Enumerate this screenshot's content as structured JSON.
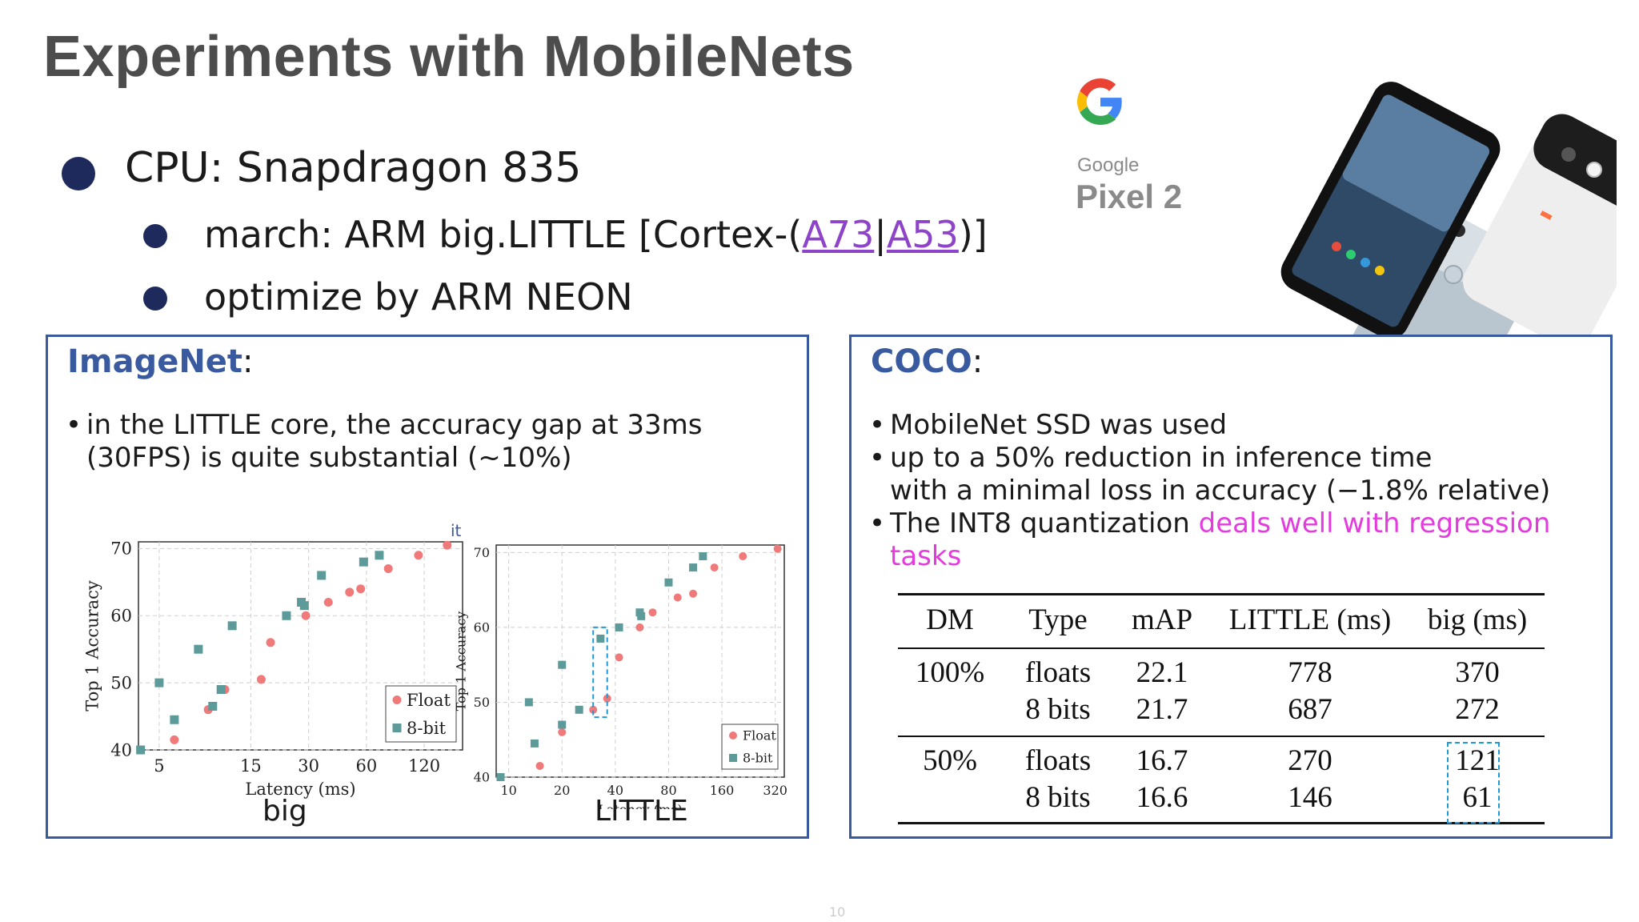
{
  "title": "Experiments with MobileNets",
  "bullets": {
    "cpu": "CPU: Snapdragon 835",
    "march_prefix": "march: ARM big.LITTLE [Cortex-(",
    "march_link1": "A73",
    "march_sep": "|",
    "march_link2": "A53",
    "march_suffix": ")]",
    "neon": "optimize by ARM NEON"
  },
  "logo": {
    "brand": "Google",
    "product": "Pixel 2"
  },
  "imagenet": {
    "heading": "ImageNet",
    "colon": ":",
    "bullet": "in the LITTLE core, the accuracy gap at 33ms (30FPS) is quite substantial (~10%)",
    "stray_text": "it",
    "caption_big": "big",
    "caption_little": "LITTLE"
  },
  "chart_data": [
    {
      "type": "scatter",
      "xlabel": "Latency (ms)",
      "ylabel": "Top 1 Accuracy",
      "x_scale": "log",
      "x_ticks": [
        "5",
        "15",
        "30",
        "60",
        "120"
      ],
      "y_ticks": [
        "40",
        "50",
        "60",
        "70"
      ],
      "ylim": [
        40,
        71
      ],
      "legend": "bottom-right",
      "series": [
        {
          "name": "Float",
          "color": "#f07a7a",
          "marker": "circle",
          "points": [
            [
              6,
              41.5
            ],
            [
              9,
              46
            ],
            [
              11,
              49
            ],
            [
              17,
              50.5
            ],
            [
              19,
              56
            ],
            [
              29,
              60
            ],
            [
              38,
              62
            ],
            [
              49,
              63.5
            ],
            [
              56,
              64
            ],
            [
              78,
              67
            ],
            [
              112,
              69
            ],
            [
              158,
              70.5
            ]
          ]
        },
        {
          "name": "8-bit",
          "color": "#5d9a9a",
          "marker": "square",
          "points": [
            [
              4,
              40
            ],
            [
              5,
              50
            ],
            [
              6,
              44.5
            ],
            [
              8,
              55
            ],
            [
              9.5,
              46.5
            ],
            [
              10.5,
              49
            ],
            [
              12,
              58.5
            ],
            [
              23,
              60
            ],
            [
              27.5,
              62
            ],
            [
              28.5,
              61.5
            ],
            [
              35,
              66
            ],
            [
              58,
              68
            ],
            [
              70,
              69
            ]
          ]
        }
      ]
    },
    {
      "type": "scatter",
      "xlabel": "Latency (ms)",
      "ylabel": "Top 1 Accuracy",
      "x_scale": "log",
      "x_ticks": [
        "10",
        "20",
        "40",
        "80",
        "160",
        "320"
      ],
      "y_ticks": [
        "40",
        "50",
        "60",
        "70"
      ],
      "ylim": [
        40,
        71
      ],
      "legend": "bottom-right",
      "series": [
        {
          "name": "Float",
          "color": "#f07a7a",
          "marker": "circle",
          "points": [
            [
              15,
              41.5
            ],
            [
              20,
              46
            ],
            [
              30,
              49
            ],
            [
              36,
              50.5
            ],
            [
              42,
              56
            ],
            [
              55,
              60
            ],
            [
              65,
              62
            ],
            [
              90,
              64
            ],
            [
              110,
              64.5
            ],
            [
              145,
              68
            ],
            [
              210,
              69.5
            ],
            [
              330,
              70.5
            ]
          ]
        },
        {
          "name": "8-bit",
          "color": "#5d9a9a",
          "marker": "square",
          "points": [
            [
              9,
              40
            ],
            [
              13,
              50
            ],
            [
              14,
              44.5
            ],
            [
              20,
              47
            ],
            [
              20,
              55
            ],
            [
              25,
              49
            ],
            [
              33,
              58.5
            ],
            [
              42,
              60
            ],
            [
              55,
              62
            ],
            [
              56,
              61.5
            ],
            [
              80,
              66
            ],
            [
              110,
              68
            ],
            [
              125,
              69.5
            ]
          ]
        }
      ]
    }
  ],
  "coco": {
    "heading": "COCO",
    "colon": ":",
    "b1": "MobileNet SSD was used",
    "b2_line1": "up to a 50% reduction in inference time",
    "b2_line2": "with a minimal loss in accuracy (−1.8% relative)",
    "b3_prefix": "The INT8 quantization ",
    "b3_highlight1": "deals well with regression",
    "b3_highlight2": "tasks",
    "table": {
      "headers": [
        "DM",
        "Type",
        "mAP",
        "LITTLE (ms)",
        "big (ms)"
      ],
      "rows": [
        {
          "dm": "100%",
          "type": "floats",
          "map": "22.1",
          "little": "778",
          "big": "370"
        },
        {
          "dm": "",
          "type": "8 bits",
          "map": "21.7",
          "little": "687",
          "big": "272"
        },
        {
          "dm": "50%",
          "type": "floats",
          "map": "16.7",
          "little": "270",
          "big": "121"
        },
        {
          "dm": "",
          "type": "8 bits",
          "map": "16.6",
          "little": "146",
          "big": "61"
        }
      ]
    }
  },
  "page_number": "10"
}
